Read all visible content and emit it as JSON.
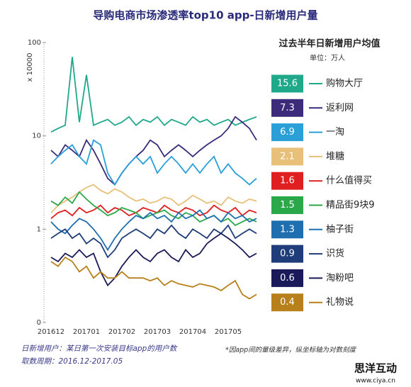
{
  "chart_data": {
    "type": "line",
    "title": "导购电商市场渗透率top10 app-日新增用户量",
    "y_label": "x 10000",
    "log_scale": true,
    "ylim": [
      0.1,
      100
    ],
    "yticks": [
      {
        "value": 0.1,
        "label": "0"
      },
      1,
      10,
      100
    ],
    "categories": [
      "201612",
      null,
      null,
      null,
      null,
      "201701",
      null,
      null,
      null,
      null,
      "201702",
      null,
      null,
      null,
      null,
      "201703",
      null,
      null,
      null,
      null,
      "201704",
      null,
      null,
      null,
      null,
      "201705",
      null,
      null,
      null,
      null
    ],
    "legend_title": "过去半年日新增用户均值",
    "legend_unit": "单位：万人",
    "series": [
      {
        "name": "购物大厅",
        "color": "#1fa88a",
        "average": 15.6,
        "values": [
          11,
          12,
          13,
          70,
          14,
          45,
          13,
          14,
          15,
          13,
          14,
          16,
          13,
          15,
          14,
          16,
          13,
          15,
          14,
          13,
          16,
          14,
          15,
          13,
          14,
          15,
          13,
          14,
          15,
          16
        ]
      },
      {
        "name": "返利网",
        "color": "#3c2a7a",
        "average": 7.3,
        "values": [
          7,
          6,
          8,
          7,
          6,
          9,
          7,
          5,
          3.5,
          3,
          4,
          5,
          6,
          7,
          9,
          8,
          6,
          7,
          8,
          7,
          6,
          7,
          8,
          9,
          10,
          12,
          16,
          14,
          12,
          9
        ]
      },
      {
        "name": "一淘",
        "color": "#2a9fd8",
        "average": 6.9,
        "values": [
          5,
          6,
          7,
          8,
          6,
          5,
          9,
          8,
          4,
          3,
          4,
          5,
          6,
          5,
          6,
          4,
          5,
          6,
          5,
          4,
          5,
          4,
          5,
          6,
          4,
          5,
          4,
          3.5,
          3,
          3.5
        ]
      },
      {
        "name": "堆糖",
        "color": "#e8c07a",
        "average": 2.1,
        "values": [
          1.5,
          1.8,
          2,
          2.2,
          2.5,
          2.8,
          3,
          2.6,
          2.4,
          2.7,
          2.5,
          2.2,
          2,
          2.1,
          1.9,
          2,
          2.2,
          2.1,
          1.8,
          2,
          2.3,
          2.1,
          1.9,
          2,
          1.8,
          2.2,
          2,
          1.9,
          2.1,
          2
        ]
      },
      {
        "name": "什么值得买",
        "color": "#e02020",
        "average": 1.6,
        "values": [
          1.3,
          1.5,
          1.6,
          1.4,
          1.7,
          1.5,
          1.6,
          1.8,
          1.5,
          1.7,
          1.6,
          1.4,
          1.5,
          1.7,
          1.6,
          1.5,
          1.8,
          1.6,
          1.5,
          1.7,
          1.6,
          1.4,
          1.5,
          1.8,
          1.6,
          1.5,
          1.7,
          1.4,
          1.6,
          1.5
        ]
      },
      {
        "name": "精品街9块9",
        "color": "#2aa84a",
        "average": 1.5,
        "values": [
          2,
          1.8,
          2.2,
          1.9,
          2.5,
          2.1,
          1.8,
          1.6,
          1.4,
          1.5,
          1.7,
          1.6,
          1.5,
          1.3,
          1.4,
          1.5,
          1.6,
          1.4,
          1.3,
          1.5,
          1.4,
          1.2,
          1.3,
          1.4,
          1.2,
          1.3,
          1.1,
          1.2,
          1.3,
          1.2
        ]
      },
      {
        "name": "柚子街",
        "color": "#1f6fb0",
        "average": 1.3,
        "values": [
          1.2,
          1,
          0.9,
          1.1,
          1.3,
          1.2,
          1,
          0.8,
          0.6,
          0.8,
          1,
          1.2,
          1.4,
          1.3,
          1.5,
          1.3,
          1.4,
          1.2,
          1.5,
          1.3,
          1.4,
          1.6,
          1.3,
          1.4,
          1.2,
          1.5,
          1.3,
          1.4,
          1.2,
          1.3
        ]
      },
      {
        "name": "识货",
        "color": "#1f3d7a",
        "average": 0.9,
        "values": [
          0.8,
          0.9,
          1,
          0.8,
          0.9,
          0.7,
          0.8,
          0.7,
          0.5,
          0.6,
          0.8,
          0.9,
          1,
          0.9,
          0.8,
          1,
          0.9,
          1.1,
          0.9,
          0.8,
          1,
          0.9,
          0.8,
          1,
          0.9,
          1.1,
          0.8,
          0.9,
          1,
          0.9
        ]
      },
      {
        "name": "淘粉吧",
        "color": "#1a1a5a",
        "average": 0.6,
        "values": [
          0.5,
          0.45,
          0.55,
          0.5,
          0.6,
          0.5,
          0.55,
          0.35,
          0.25,
          0.3,
          0.4,
          0.5,
          0.6,
          0.5,
          0.45,
          0.55,
          0.6,
          0.5,
          0.45,
          0.6,
          0.5,
          0.55,
          0.7,
          0.8,
          0.9,
          0.8,
          0.7,
          0.6,
          0.5,
          0.55
        ]
      },
      {
        "name": "礼物说",
        "color": "#b8801a",
        "average": 0.4,
        "values": [
          0.45,
          0.4,
          0.5,
          0.45,
          0.35,
          0.4,
          0.3,
          0.35,
          0.3,
          0.3,
          0.35,
          0.3,
          0.3,
          0.3,
          0.28,
          0.3,
          0.25,
          0.28,
          0.26,
          0.25,
          0.24,
          0.26,
          0.25,
          0.24,
          0.22,
          0.25,
          0.28,
          0.2,
          0.18,
          0.2
        ]
      }
    ],
    "notes": [
      "日新增用户：某日第一次安装目标app的用户数",
      "取数周期：2016.12-2017.05",
      "*因app间的量级差异，纵坐标轴为对数刻度"
    ],
    "watermark": {
      "name": "思洋互动",
      "url": "www.ciya.cn"
    }
  }
}
